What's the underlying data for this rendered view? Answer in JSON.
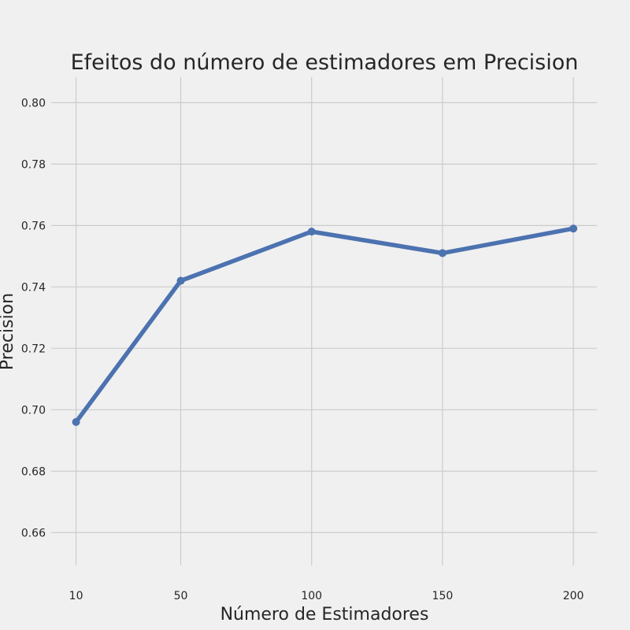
{
  "chart_data": {
    "type": "line",
    "title": "Efeitos do número de estimadores em Precision",
    "xlabel": "Número de Estimadores",
    "ylabel": "Precision",
    "x": [
      10,
      50,
      100,
      150,
      200
    ],
    "x_tick_labels": [
      "10",
      "50",
      "100",
      "150",
      "200"
    ],
    "y_ticks": [
      0.66,
      0.68,
      0.7,
      0.72,
      0.74,
      0.76,
      0.78,
      0.8
    ],
    "y_tick_labels": [
      "0.66",
      "0.68",
      "0.70",
      "0.72",
      "0.74",
      "0.76",
      "0.78",
      "0.80"
    ],
    "series": [
      {
        "values": [
          0.696,
          0.742,
          0.758,
          0.751,
          0.759
        ]
      }
    ],
    "xlim": [
      0.5,
      209
    ],
    "ylim": [
      0.6493,
      0.8083
    ],
    "grid": true,
    "colors": {
      "series": "#4c72b0",
      "grid": "#cbcbcb",
      "background": "#f0f0f0",
      "text": "#262626"
    }
  }
}
